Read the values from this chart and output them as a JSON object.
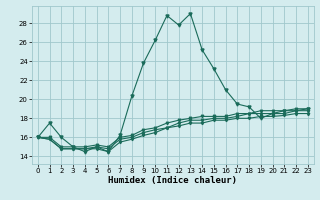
{
  "title": "",
  "xlabel": "Humidex (Indice chaleur)",
  "bg_color": "#d4ecee",
  "grid_color": "#a0c8cc",
  "line_color": "#1a6b5a",
  "xlim": [
    -0.5,
    23.5
  ],
  "ylim": [
    13.2,
    29.8
  ],
  "yticks": [
    14,
    16,
    18,
    20,
    22,
    24,
    26,
    28
  ],
  "xticks": [
    0,
    1,
    2,
    3,
    4,
    5,
    6,
    7,
    8,
    9,
    10,
    11,
    12,
    13,
    14,
    15,
    16,
    17,
    18,
    19,
    20,
    21,
    22,
    23
  ],
  "series": [
    [
      16.0,
      17.5,
      16.0,
      15.0,
      14.5,
      15.0,
      14.5,
      16.2,
      20.3,
      23.8,
      26.2,
      28.8,
      27.8,
      29.0,
      25.2,
      23.2,
      21.0,
      19.5,
      19.2,
      18.0,
      18.5,
      18.8,
      18.8,
      19.0
    ],
    [
      16.0,
      15.8,
      14.8,
      14.8,
      14.8,
      14.8,
      14.5,
      15.5,
      15.8,
      16.2,
      16.5,
      17.0,
      17.2,
      17.5,
      17.5,
      17.8,
      17.8,
      18.0,
      18.0,
      18.2,
      18.2,
      18.3,
      18.5,
      18.5
    ],
    [
      16.0,
      15.8,
      14.8,
      14.8,
      14.8,
      15.0,
      14.8,
      15.8,
      16.0,
      16.5,
      16.8,
      17.0,
      17.5,
      17.8,
      17.8,
      18.0,
      18.0,
      18.2,
      18.5,
      18.5,
      18.5,
      18.5,
      18.8,
      18.8
    ],
    [
      16.0,
      16.0,
      15.0,
      15.0,
      15.0,
      15.2,
      15.0,
      16.0,
      16.2,
      16.8,
      17.0,
      17.5,
      17.8,
      18.0,
      18.2,
      18.2,
      18.2,
      18.5,
      18.5,
      18.8,
      18.8,
      18.8,
      19.0,
      19.0
    ]
  ]
}
